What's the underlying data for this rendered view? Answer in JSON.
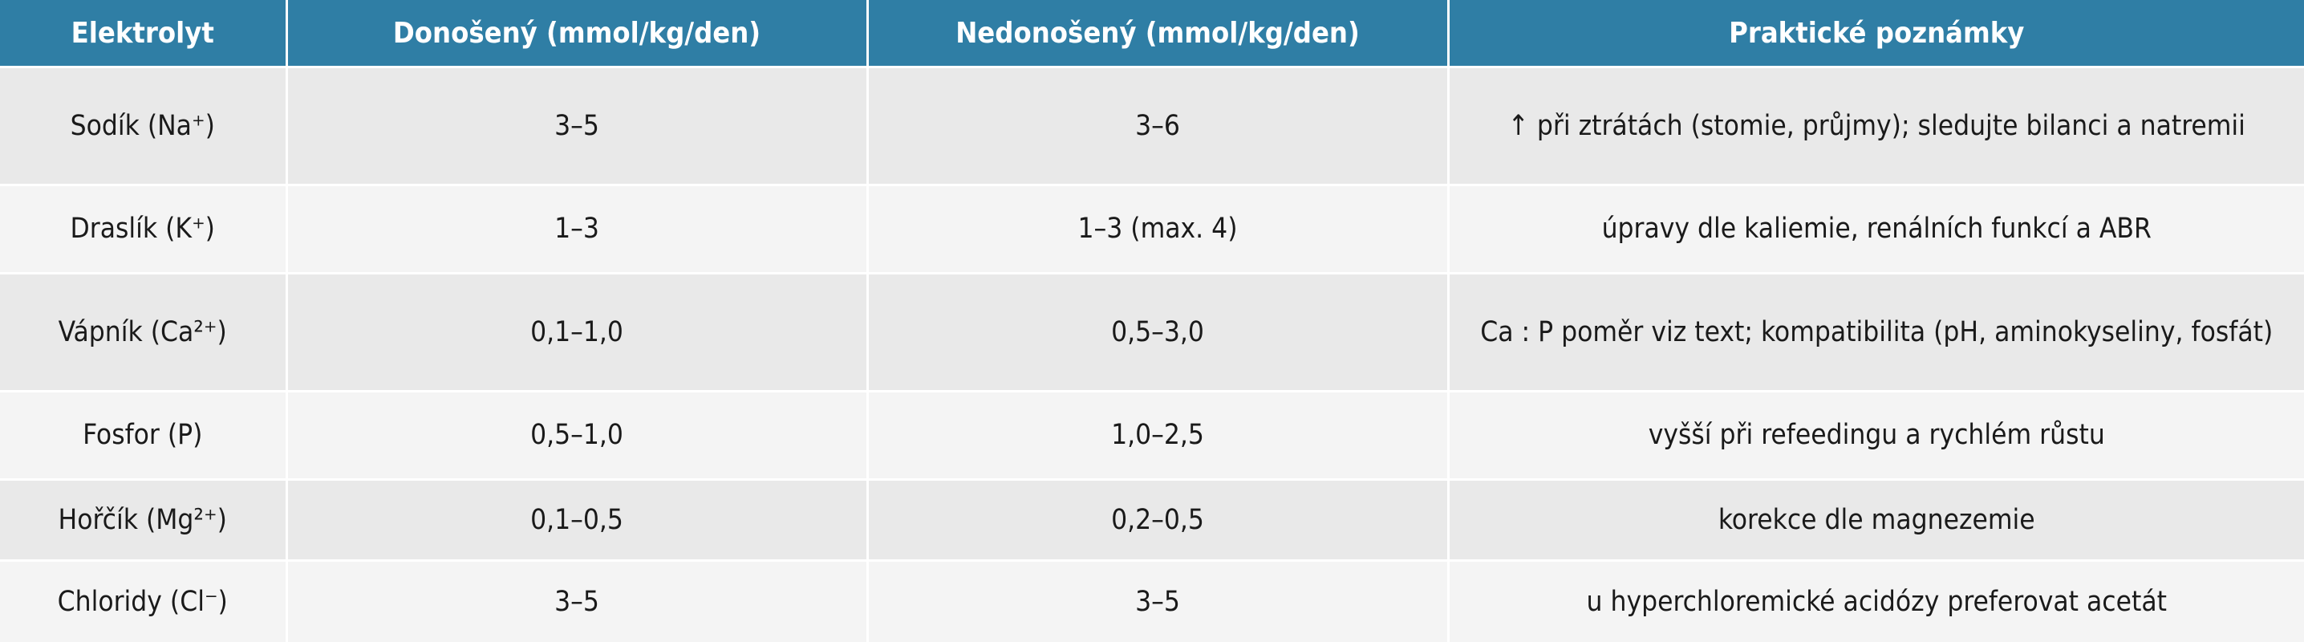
{
  "table": {
    "header": [
      "Elektrolyt",
      "Donošený (mmol/kg/den)",
      "Nedonošený (mmol/kg/den)",
      "Praktické poznámky"
    ],
    "rows": [
      [
        "Sodík (Na⁺)",
        "3–5",
        "3–6",
        "↑ při ztrátách (stomie, průjmy); sledujte bilanci a natremii"
      ],
      [
        "Draslík (K⁺)",
        "1–3",
        "1–3 (max. 4)",
        "úpravy dle kaliemie, renálních funkcí a ABR"
      ],
      [
        "Vápník (Ca²⁺)",
        "0,1–1,0",
        "0,5–3,0",
        "Ca : P poměr viz text; kompatibilita (pH, aminokyseliny, fosfát)"
      ],
      [
        "Fosfor (P)",
        "0,5–1,0",
        "1,0–2,5",
        "vyšší při refeedingu a rychlém růstu"
      ],
      [
        "Hořčík (Mg²⁺)",
        "0,1–0,5",
        "0,2–0,5",
        "korekce dle magnezemie"
      ],
      [
        "Chloridy (Cl⁻)",
        "3–5",
        "3–5",
        "u hyperchloremické acidózy preferovat acetát"
      ]
    ]
  }
}
